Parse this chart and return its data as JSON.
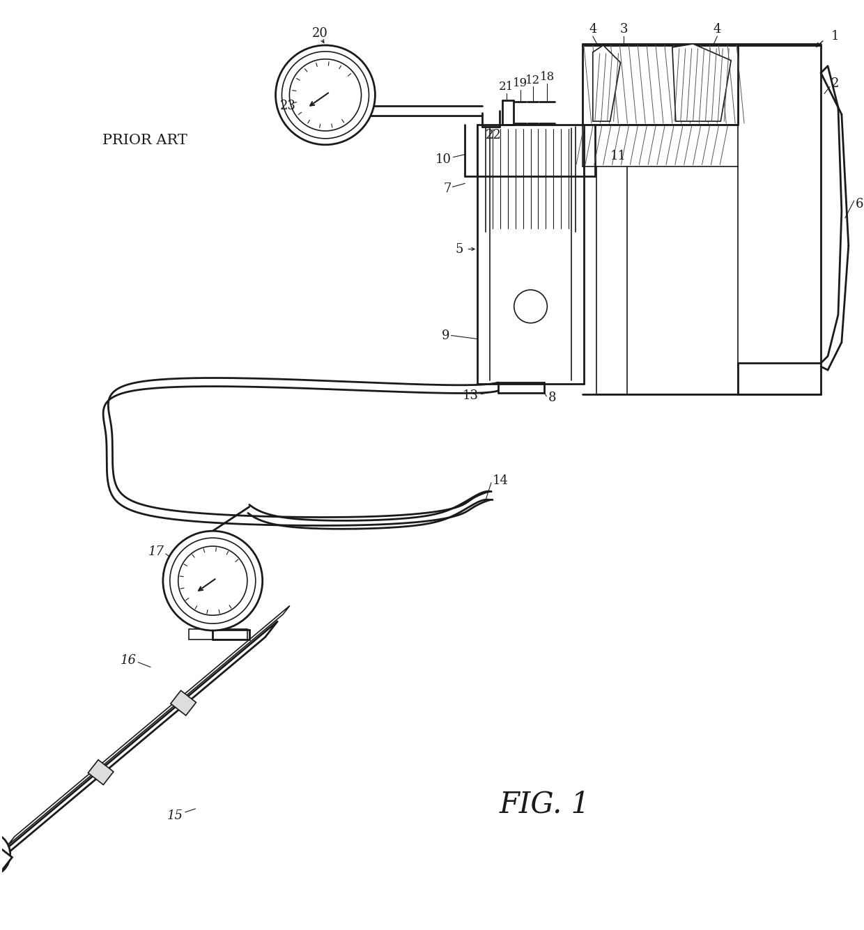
{
  "bg_color": "#ffffff",
  "line_color": "#1a1a1a",
  "fig_width": 12.4,
  "fig_height": 13.35,
  "dpi": 100,
  "title": "FIG. 1",
  "prior_art": "PRIOR ART"
}
